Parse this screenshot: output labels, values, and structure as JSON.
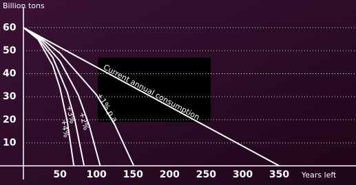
{
  "chart_data": {
    "type": "line",
    "y_label": "Billion tons",
    "x_label": "Years left",
    "xlim": [
      0,
      455
    ],
    "ylim": [
      0,
      69
    ],
    "xticks": [
      50,
      100,
      150,
      200,
      250,
      300,
      350
    ],
    "yticks": [
      10,
      20,
      30,
      40,
      50,
      60
    ],
    "grid": true,
    "series": [
      {
        "name": "Current annual consumption",
        "color": "#ffffff",
        "x": [
          0,
          350
        ],
        "values": [
          60,
          0
        ]
      },
      {
        "name": "+1% p.a.",
        "color": "#ffffff",
        "x": [
          0,
          25,
          50,
          100,
          125,
          151
        ],
        "values": [
          60,
          55.2,
          48.9,
          30.8,
          17.8,
          0
        ]
      },
      {
        "name": "+2%",
        "color": "#ffffff",
        "x": [
          0,
          25,
          50,
          75,
          90,
          105
        ],
        "values": [
          60,
          54.5,
          45.5,
          30.7,
          17.6,
          0
        ]
      },
      {
        "name": "+3%",
        "color": "#ffffff",
        "x": [
          0,
          20,
          40,
          60,
          70,
          83
        ],
        "values": [
          60,
          55.4,
          47.1,
          32,
          20.5,
          0
        ]
      },
      {
        "name": "+4%",
        "color": "#ffffff",
        "x": [
          0,
          20,
          40,
          50,
          60,
          69
        ],
        "values": [
          60,
          54.9,
          43.7,
          33.8,
          19.2,
          0
        ]
      }
    ]
  }
}
